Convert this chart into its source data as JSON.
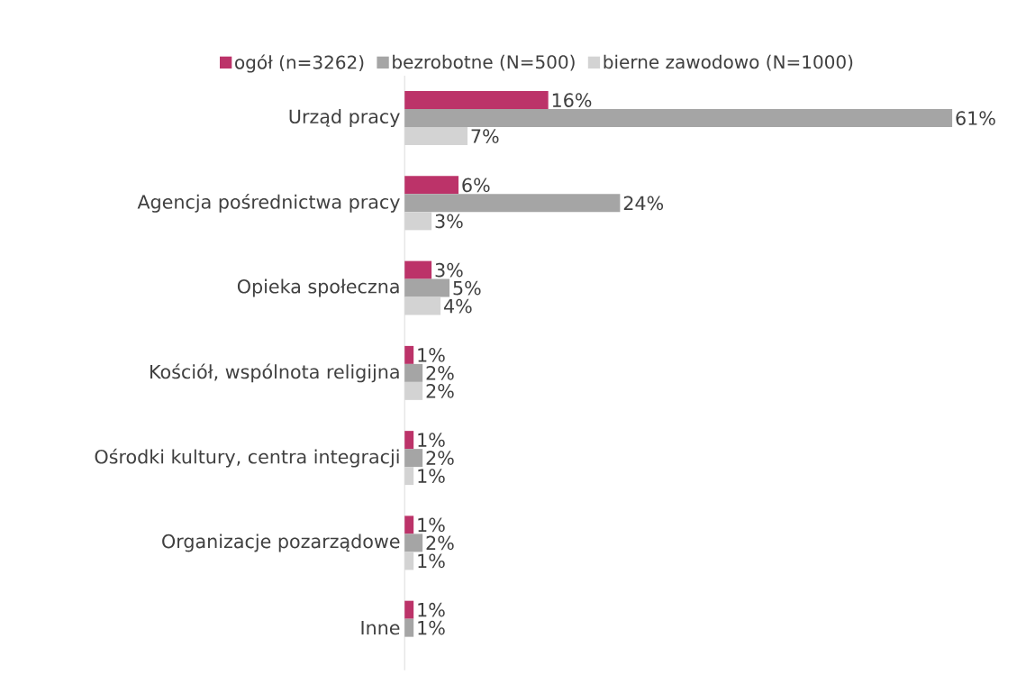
{
  "chart_data": {
    "type": "bar",
    "orientation": "horizontal",
    "legend": "top",
    "tick_labels": "y",
    "categories": [
      "Urząd pracy",
      "Agencja pośrednictwa pracy",
      "Opieka społeczna",
      "Kościół, wspólnota religijna",
      "Ośrodki kultury, centra integracji",
      "Organizacje pozarządowe",
      "Inne"
    ],
    "series": [
      {
        "name": "ogół (n=3262)",
        "color": "#bc3369",
        "values": [
          16,
          6,
          3,
          1,
          1,
          1,
          1
        ],
        "value_labels": [
          "16%",
          "6%",
          "3%",
          "1%",
          "1%",
          "1%",
          "1%"
        ]
      },
      {
        "name": "bezrobotne (N=500)",
        "color": "#a5a5a5",
        "values": [
          61,
          24,
          5,
          2,
          2,
          2,
          1
        ],
        "value_labels": [
          "61%",
          "24%",
          "5%",
          "2%",
          "2%",
          "2%",
          "1%"
        ]
      },
      {
        "name": "bierne zawodowo (N=1000)",
        "color": "#d3d3d3",
        "values": [
          7,
          3,
          4,
          2,
          1,
          1,
          null
        ],
        "value_labels": [
          "7%",
          "3%",
          "4%",
          "2%",
          "1%",
          "1%",
          null
        ]
      }
    ]
  }
}
